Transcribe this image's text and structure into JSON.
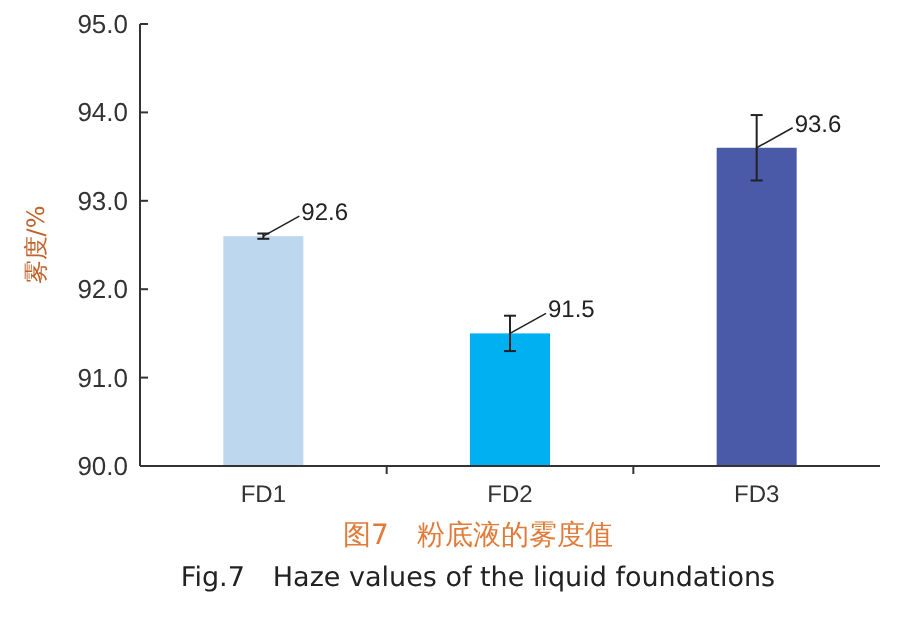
{
  "chart_data": {
    "type": "bar",
    "ylabel": "雾度/%",
    "categories": [
      "FD1",
      "FD2",
      "FD3"
    ],
    "values": [
      92.6,
      91.5,
      93.6
    ],
    "colors": [
      "#bdd7ee",
      "#00b0f0",
      "#4a5aa8"
    ],
    "errors": [
      0.03,
      0.2,
      0.37
    ],
    "data_labels": true,
    "ylim": [
      90,
      95
    ],
    "yticks": [
      {
        "value": 90,
        "label": "90.0"
      },
      {
        "value": 91,
        "label": "91.0"
      },
      {
        "value": 92,
        "label": "92.0"
      },
      {
        "value": 93,
        "label": "93.0"
      },
      {
        "value": 94,
        "label": "94.0"
      },
      {
        "value": 95,
        "label": "95.0"
      }
    ],
    "grid": false,
    "annotations": [
      "图7　粉底液的雾度值",
      "Fig.7　Haze values of the liquid foundations"
    ]
  }
}
